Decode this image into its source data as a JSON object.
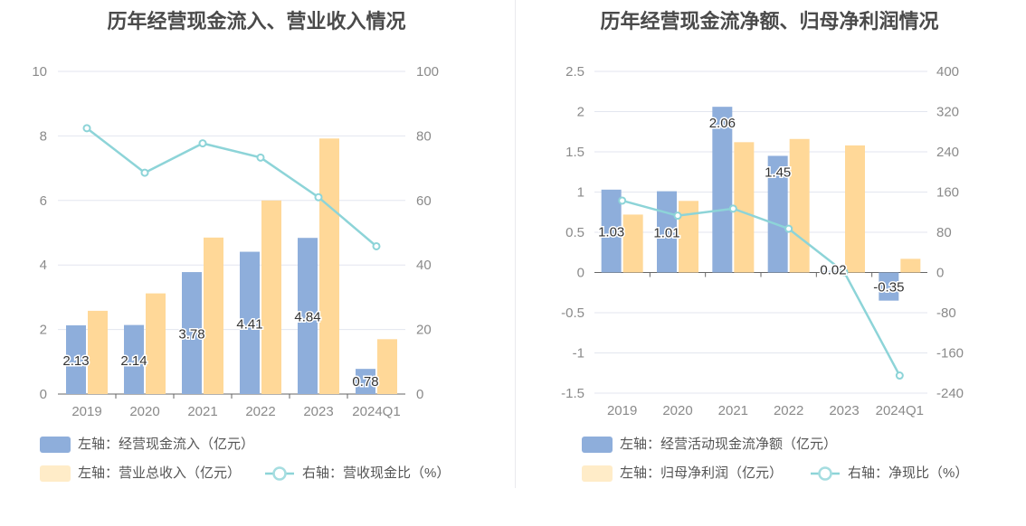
{
  "charts": [
    {
      "title": "历年经营现金流入、营业收入情况",
      "legend": {
        "bar1": "左轴：经营现金流入（亿元）",
        "bar2": "左轴：营业总收入（亿元）",
        "line": "右轴：营收现金比（%）"
      }
    },
    {
      "title": "历年经营现金流净额、归母净利润情况",
      "legend": {
        "bar1": "左轴：经营活动现金流净额（亿元）",
        "bar2": "左轴：归母净利润（亿元）",
        "line": "右轴：净现比（%）"
      }
    }
  ],
  "colors": {
    "bar1": "#8eaedb",
    "bar2": "#ffd898",
    "line": "#8dd4d8"
  },
  "chart_data": [
    {
      "type": "bar",
      "title": "历年经营现金流入、营业收入情况",
      "categories": [
        "2019",
        "2020",
        "2021",
        "2022",
        "2023",
        "2024Q1"
      ],
      "left_axis": {
        "range": [
          0,
          10
        ],
        "ticks": [
          "0",
          "2",
          "4",
          "6",
          "8",
          "10"
        ]
      },
      "right_axis": {
        "range": [
          0,
          100
        ],
        "ticks": [
          "0",
          "20",
          "40",
          "60",
          "80",
          "100"
        ]
      },
      "grid": true,
      "legend_position": "bottom-left",
      "series": [
        {
          "name": "左轴：经营现金流入（亿元）",
          "type": "bar",
          "axis": "left",
          "values": [
            2.13,
            2.14,
            3.78,
            4.41,
            4.84,
            0.78
          ],
          "labels": [
            "2.13",
            "2.14",
            "3.78",
            "4.41",
            "4.84",
            "0.78"
          ]
        },
        {
          "name": "左轴：营业总收入（亿元）",
          "type": "bar",
          "axis": "left",
          "values": [
            2.58,
            3.12,
            4.85,
            6.0,
            7.92,
            1.7
          ]
        },
        {
          "name": "右轴：营收现金比（%）",
          "type": "line",
          "axis": "right",
          "values": [
            82.4,
            68.6,
            77.7,
            73.3,
            61.0,
            45.8
          ]
        }
      ]
    },
    {
      "type": "bar",
      "title": "历年经营现金流净额、归母净利润情况",
      "categories": [
        "2019",
        "2020",
        "2021",
        "2022",
        "2023",
        "2024Q1"
      ],
      "left_axis": {
        "range": [
          -1.5,
          2.5
        ],
        "ticks": [
          "-1.5",
          "-1",
          "-0.5",
          "0",
          "0.5",
          "1",
          "1.5",
          "2",
          "2.5"
        ]
      },
      "right_axis": {
        "range": [
          -240,
          400
        ],
        "ticks": [
          "-240",
          "-160",
          "-80",
          "0",
          "80",
          "160",
          "240",
          "320",
          "400"
        ]
      },
      "grid": true,
      "legend_position": "bottom-left",
      "series": [
        {
          "name": "左轴：经营活动现金流净额（亿元）",
          "type": "bar",
          "axis": "left",
          "values": [
            1.03,
            1.01,
            2.06,
            1.45,
            0.02,
            -0.35
          ],
          "labels": [
            "1.03",
            "1.01",
            "2.06",
            "1.45",
            "0.02",
            "-0.35"
          ]
        },
        {
          "name": "左轴：归母净利润（亿元）",
          "type": "bar",
          "axis": "left",
          "values": [
            0.72,
            0.89,
            1.62,
            1.66,
            1.58,
            0.17
          ]
        },
        {
          "name": "右轴：净现比（%）",
          "type": "line",
          "axis": "right",
          "values": [
            143,
            113,
            127,
            87,
            1,
            -205
          ]
        }
      ]
    }
  ]
}
